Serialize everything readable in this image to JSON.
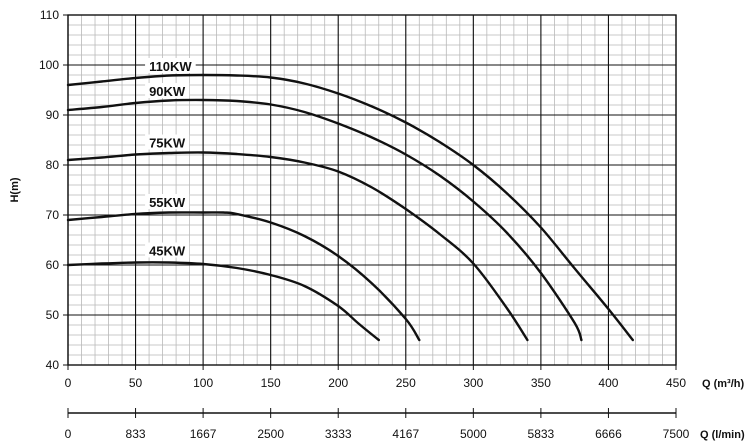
{
  "chart_data": {
    "type": "line",
    "title": "",
    "ylabel": "H(m)",
    "xlabel": "Q (m³/h)",
    "secondary_xlabel": "Q (l/min)",
    "xlim": [
      0,
      450
    ],
    "ylim": [
      40,
      110
    ],
    "x_ticks": [
      "0",
      "50",
      "100",
      "150",
      "200",
      "250",
      "300",
      "350",
      "400",
      "450"
    ],
    "secondary_x_ticks": [
      "0",
      "833",
      "1667",
      "2500",
      "3333",
      "4167",
      "5000",
      "5833",
      "6666",
      "7500"
    ],
    "y_ticks": [
      "40",
      "50",
      "60",
      "70",
      "80",
      "90",
      "100",
      "110"
    ],
    "grid": true,
    "series": [
      {
        "name": "110KW",
        "x": [
          0,
          25,
          50,
          75,
          100,
          125,
          150,
          175,
          200,
          225,
          250,
          275,
          300,
          325,
          350,
          375,
          400,
          418
        ],
        "y": [
          96,
          96.7,
          97.4,
          97.9,
          98,
          97.9,
          97.5,
          96.3,
          94.3,
          91.7,
          88.5,
          84.6,
          80,
          74.3,
          67.5,
          59.3,
          51.2,
          45
        ]
      },
      {
        "name": "90KW",
        "x": [
          0,
          25,
          50,
          75,
          100,
          125,
          150,
          175,
          200,
          225,
          250,
          275,
          300,
          325,
          350,
          375,
          380
        ],
        "y": [
          91,
          91.6,
          92.4,
          92.9,
          93,
          92.8,
          92.1,
          90.6,
          88.3,
          85.5,
          82.1,
          77.9,
          72.7,
          66.4,
          58.4,
          48.4,
          45
        ]
      },
      {
        "name": "75KW",
        "x": [
          0,
          25,
          50,
          75,
          100,
          125,
          150,
          175,
          200,
          225,
          250,
          275,
          300,
          325,
          340
        ],
        "y": [
          81,
          81.5,
          82.1,
          82.4,
          82.5,
          82.2,
          81.6,
          80.5,
          78.7,
          75.5,
          71.2,
          66.2,
          60.3,
          51.3,
          45
        ]
      },
      {
        "name": "55KW",
        "x": [
          0,
          25,
          50,
          75,
          100,
          115,
          125,
          150,
          175,
          200,
          225,
          250,
          260
        ],
        "y": [
          69,
          69.6,
          70.2,
          70.5,
          70.5,
          70.5,
          70.2,
          68.5,
          65.8,
          61.8,
          56.3,
          49.2,
          45
        ]
      },
      {
        "name": "45KW",
        "x": [
          0,
          25,
          50,
          75,
          100,
          125,
          150,
          175,
          200,
          215,
          230
        ],
        "y": [
          60,
          60.3,
          60.5,
          60.5,
          60.2,
          59.4,
          58,
          55.8,
          51.8,
          48.3,
          45
        ]
      }
    ]
  }
}
